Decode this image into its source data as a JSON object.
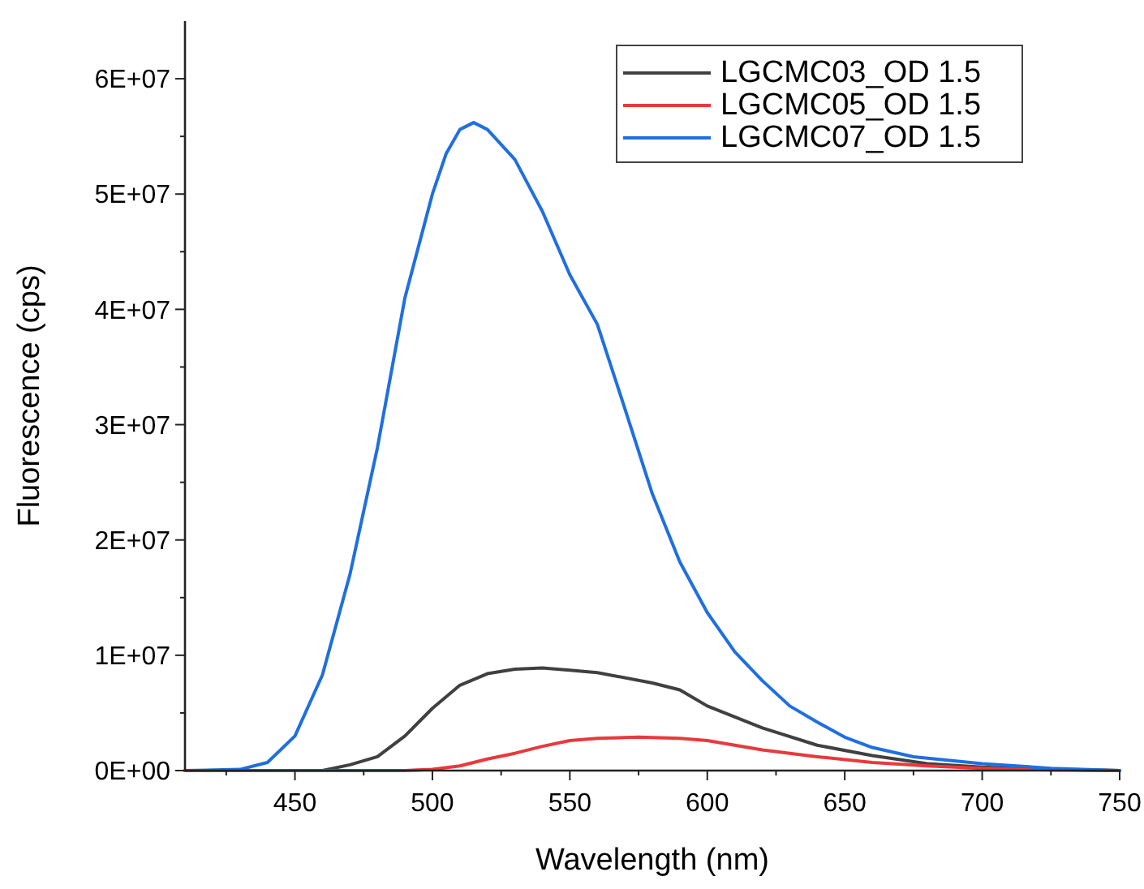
{
  "chart_data": {
    "type": "line",
    "xlabel": "Wavelength (nm)",
    "ylabel": "Fluorescence (cps)",
    "xlim": [
      410,
      750
    ],
    "ylim": [
      0,
      65000000
    ],
    "xticks": [
      {
        "value": 425,
        "label": null
      },
      450,
      {
        "value": 475,
        "label": null
      },
      500,
      {
        "value": 525,
        "label": null
      },
      550,
      {
        "value": 575,
        "label": null
      },
      600,
      {
        "value": 625,
        "label": null
      },
      650,
      {
        "value": 675,
        "label": null
      },
      700,
      {
        "value": 725,
        "label": null
      },
      750
    ],
    "yticks": [
      {
        "value": 0,
        "label": "0E+00"
      },
      {
        "value": 5000000,
        "label": null
      },
      {
        "value": 10000000,
        "label": "1E+07"
      },
      {
        "value": 15000000,
        "label": null
      },
      {
        "value": 20000000,
        "label": "2E+07"
      },
      {
        "value": 25000000,
        "label": null
      },
      {
        "value": 30000000,
        "label": "3E+07"
      },
      {
        "value": 35000000,
        "label": null
      },
      {
        "value": 40000000,
        "label": "4E+07"
      },
      {
        "value": 45000000,
        "label": null
      },
      {
        "value": 50000000,
        "label": "5E+07"
      },
      {
        "value": 55000000,
        "label": null
      },
      {
        "value": 60000000,
        "label": "6E+07"
      }
    ],
    "legend": "top right",
    "grid": false,
    "marker": "none",
    "line_style": "solid",
    "series": [
      {
        "name": "LGCMC03_OD 1.5",
        "color": "#404040",
        "x": [
          410,
          430,
          450,
          460,
          470,
          480,
          490,
          500,
          510,
          520,
          530,
          540,
          550,
          560,
          580,
          590,
          600,
          620,
          640,
          660,
          680,
          700,
          725,
          750
        ],
        "values": [
          0,
          0,
          0,
          0,
          500000,
          1200000,
          3000000,
          5400000,
          7400000,
          8400000,
          8800000,
          8900000,
          8700000,
          8500000,
          7600000,
          7000000,
          5600000,
          3700000,
          2200000,
          1300000,
          600000,
          300000,
          100000,
          0
        ]
      },
      {
        "name": "LGCMC05_OD 1.5",
        "color": "#e8393c",
        "x": [
          410,
          450,
          490,
          500,
          510,
          520,
          530,
          540,
          550,
          560,
          575,
          590,
          600,
          620,
          640,
          660,
          680,
          700,
          725,
          750
        ],
        "values": [
          0,
          0,
          0,
          100000,
          400000,
          1000000,
          1500000,
          2100000,
          2600000,
          2800000,
          2900000,
          2800000,
          2600000,
          1800000,
          1200000,
          700000,
          400000,
          200000,
          50000,
          0
        ]
      },
      {
        "name": "LGCMC07_OD 1.5",
        "color": "#1f6fe0",
        "x": [
          410,
          430,
          440,
          450,
          460,
          470,
          480,
          490,
          500,
          505,
          510,
          515,
          520,
          530,
          540,
          550,
          560,
          570,
          580,
          590,
          600,
          610,
          620,
          630,
          640,
          650,
          660,
          675,
          700,
          725,
          750
        ],
        "values": [
          0,
          100000,
          700000,
          3000000,
          8300000,
          17000000,
          28000000,
          41000000,
          50000000,
          53500000,
          55600000,
          56200000,
          55600000,
          53000000,
          48500000,
          43000000,
          38700000,
          31400000,
          24000000,
          18100000,
          13700000,
          10300000,
          7800000,
          5600000,
          4200000,
          2900000,
          2000000,
          1200000,
          600000,
          200000,
          0
        ]
      }
    ]
  }
}
